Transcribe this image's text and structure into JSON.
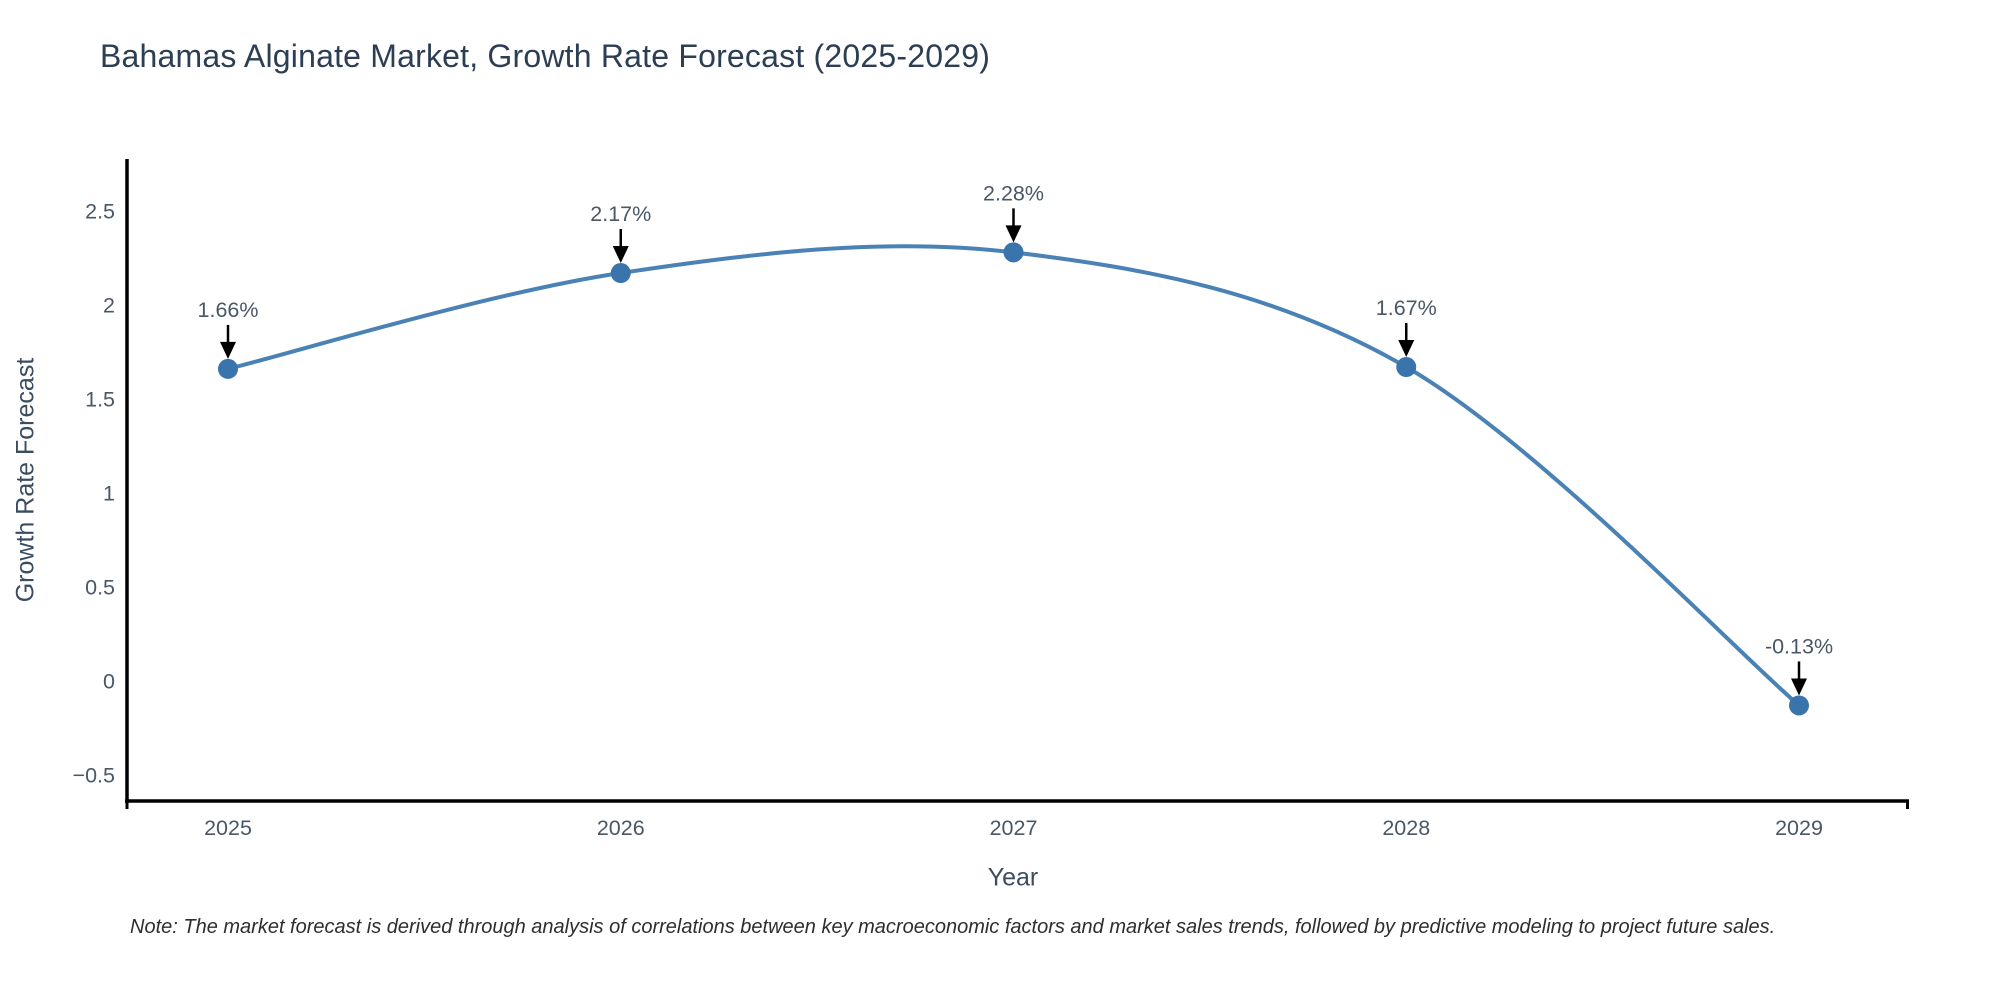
{
  "note": "Note: The market forecast is derived through analysis of correlations between key macroeconomic factors and market sales trends, followed by predictive modeling to project future sales.",
  "chart_data": {
    "type": "line",
    "title": "Bahamas Alginate Market, Growth Rate Forecast (2025-2029)",
    "xlabel": "Year",
    "ylabel": "Growth Rate Forecast",
    "x": [
      2025,
      2026,
      2027,
      2028,
      2029
    ],
    "values": [
      1.66,
      2.17,
      2.28,
      1.67,
      -0.13
    ],
    "point_labels": [
      "1.66%",
      "2.17%",
      "2.28%",
      "1.67%",
      "-0.13%"
    ],
    "xtick_labels": [
      "2025",
      "2026",
      "2027",
      "2028",
      "2029"
    ],
    "yticks": [
      2.5,
      2,
      1.5,
      1,
      0.5,
      0,
      -0.5
    ],
    "ytick_labels": [
      "2.5",
      "2",
      "1.5",
      "1",
      "0.5",
      "0",
      "−0.5"
    ],
    "ylim": [
      -0.65,
      2.8
    ],
    "grid": false,
    "legend": "none",
    "curve": "spline",
    "line_color": "#4a82b5",
    "marker_color": "#3a74ac",
    "axis_color": "#000000",
    "tick_label_color": "#4a5765",
    "annotation_text_color": "#4a5765",
    "annotation_arrow_color": "#000000"
  }
}
